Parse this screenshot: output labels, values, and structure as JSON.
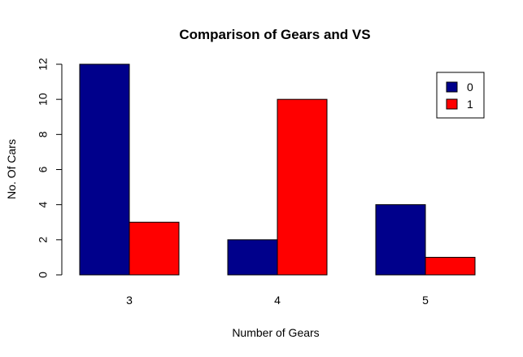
{
  "chart_data": {
    "type": "bar",
    "title": "Comparison of Gears and VS",
    "xlabel": "Number of Gears",
    "ylabel": "No. Of Cars",
    "categories": [
      "3",
      "4",
      "5"
    ],
    "series": [
      {
        "name": "0",
        "values": [
          12,
          2,
          4
        ],
        "color": "#00008B"
      },
      {
        "name": "1",
        "values": [
          3,
          10,
          1
        ],
        "color": "#FF0000"
      }
    ],
    "ylim": [
      0,
      12
    ],
    "yticks": [
      0,
      2,
      4,
      6,
      8,
      10,
      12
    ],
    "grid": false,
    "legend_position": "top-right"
  }
}
